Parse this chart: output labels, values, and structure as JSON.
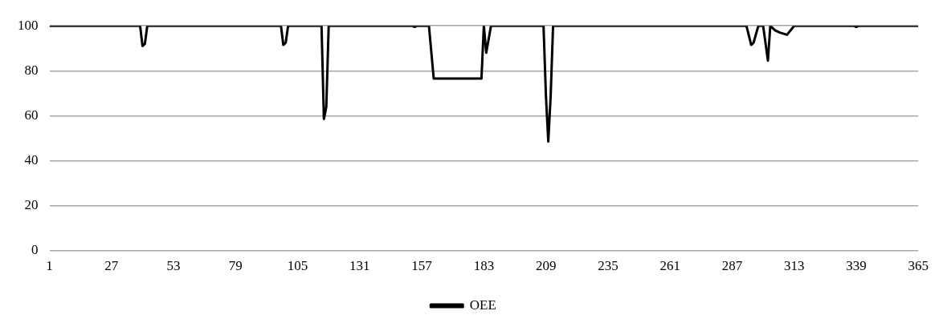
{
  "chart_data": {
    "type": "line",
    "x": [
      1,
      39,
      40,
      41,
      42,
      98,
      99,
      100,
      101,
      115,
      116,
      117,
      118,
      153,
      154,
      155,
      160,
      162,
      182,
      183,
      184,
      186,
      208,
      209,
      210,
      211,
      212,
      293,
      295,
      296,
      298,
      300,
      302,
      303,
      305,
      307,
      310,
      313,
      338,
      339,
      340,
      365
    ],
    "series": [
      {
        "name": "OEE",
        "color": "#000000",
        "values": [
          100,
          100,
          91,
          92,
          100,
          100,
          91.5,
          92.5,
          100,
          100,
          58.5,
          64,
          100,
          100,
          99.5,
          100,
          100,
          76.5,
          76.5,
          100,
          88,
          100,
          100,
          69,
          48.5,
          69,
          100,
          100,
          91.5,
          92.5,
          100,
          100,
          84.5,
          100,
          98,
          97,
          96,
          100,
          100,
          99.5,
          100,
          100
        ]
      }
    ],
    "xlim": [
      1,
      365
    ],
    "xticks": [
      1,
      27,
      53,
      79,
      105,
      131,
      157,
      183,
      209,
      235,
      261,
      287,
      313,
      339,
      365
    ],
    "ylim": [
      0,
      100
    ],
    "yticks": [
      0,
      20,
      40,
      60,
      80,
      100
    ],
    "grid": "y",
    "legend": "bottom",
    "marker": "none",
    "line_style": "solid"
  }
}
